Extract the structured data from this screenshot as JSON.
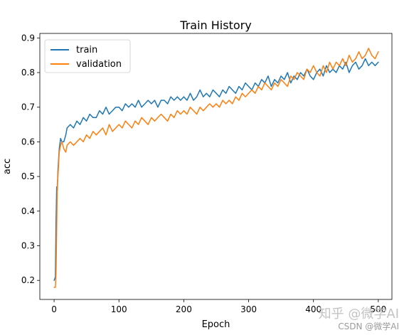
{
  "chart_data": {
    "type": "line",
    "title": "Train History",
    "xlabel": "Epoch",
    "ylabel": "acc",
    "xlim": [
      -22,
      521
    ],
    "ylim": [
      0.145,
      0.913
    ],
    "xticks": [
      0,
      100,
      200,
      300,
      400,
      500
    ],
    "yticks": [
      0.2,
      0.3,
      0.4,
      0.5,
      0.6,
      0.7,
      0.8,
      0.9
    ],
    "legend_position": "top-left",
    "grid": false,
    "series": [
      {
        "name": "train",
        "color": "#1f77b4",
        "x": [
          0,
          2,
          3,
          4,
          5,
          6,
          8,
          10,
          12,
          15,
          18,
          20,
          25,
          30,
          35,
          40,
          45,
          50,
          55,
          60,
          65,
          70,
          75,
          80,
          85,
          90,
          95,
          100,
          105,
          110,
          115,
          120,
          125,
          130,
          135,
          140,
          145,
          150,
          155,
          160,
          165,
          170,
          175,
          180,
          185,
          190,
          195,
          200,
          205,
          210,
          215,
          220,
          225,
          230,
          235,
          240,
          245,
          250,
          255,
          260,
          265,
          270,
          275,
          280,
          285,
          290,
          295,
          300,
          305,
          310,
          315,
          320,
          325,
          330,
          335,
          340,
          345,
          350,
          355,
          360,
          365,
          370,
          375,
          380,
          385,
          390,
          395,
          400,
          405,
          410,
          415,
          420,
          425,
          430,
          435,
          440,
          445,
          450,
          455,
          460,
          465,
          470,
          475,
          480,
          485,
          490,
          495,
          500
        ],
        "y": [
          0.2,
          0.21,
          0.37,
          0.47,
          0.46,
          0.52,
          0.58,
          0.61,
          0.6,
          0.6,
          0.62,
          0.64,
          0.65,
          0.64,
          0.66,
          0.65,
          0.67,
          0.66,
          0.68,
          0.67,
          0.67,
          0.69,
          0.68,
          0.7,
          0.68,
          0.69,
          0.7,
          0.7,
          0.69,
          0.71,
          0.7,
          0.71,
          0.7,
          0.72,
          0.7,
          0.71,
          0.72,
          0.71,
          0.72,
          0.7,
          0.72,
          0.72,
          0.71,
          0.73,
          0.72,
          0.73,
          0.72,
          0.73,
          0.72,
          0.74,
          0.72,
          0.73,
          0.75,
          0.73,
          0.74,
          0.73,
          0.75,
          0.74,
          0.73,
          0.75,
          0.74,
          0.76,
          0.75,
          0.74,
          0.76,
          0.75,
          0.77,
          0.76,
          0.75,
          0.77,
          0.76,
          0.78,
          0.77,
          0.79,
          0.76,
          0.78,
          0.77,
          0.79,
          0.78,
          0.8,
          0.77,
          0.79,
          0.78,
          0.8,
          0.79,
          0.81,
          0.79,
          0.78,
          0.8,
          0.81,
          0.79,
          0.82,
          0.8,
          0.81,
          0.8,
          0.82,
          0.81,
          0.83,
          0.8,
          0.82,
          0.83,
          0.81,
          0.82,
          0.84,
          0.82,
          0.83,
          0.82,
          0.83
        ]
      },
      {
        "name": "validation",
        "color": "#ff7f0e",
        "x": [
          0,
          2,
          3,
          4,
          5,
          6,
          8,
          10,
          12,
          15,
          18,
          20,
          25,
          30,
          35,
          40,
          45,
          50,
          55,
          60,
          65,
          70,
          75,
          80,
          85,
          90,
          95,
          100,
          105,
          110,
          115,
          120,
          125,
          130,
          135,
          140,
          145,
          150,
          155,
          160,
          165,
          170,
          175,
          180,
          185,
          190,
          195,
          200,
          205,
          210,
          215,
          220,
          225,
          230,
          235,
          240,
          245,
          250,
          255,
          260,
          265,
          270,
          275,
          280,
          285,
          290,
          295,
          300,
          305,
          310,
          315,
          320,
          325,
          330,
          335,
          340,
          345,
          350,
          355,
          360,
          365,
          370,
          375,
          380,
          385,
          390,
          395,
          400,
          405,
          410,
          415,
          420,
          425,
          430,
          435,
          440,
          445,
          450,
          455,
          460,
          465,
          470,
          475,
          480,
          485,
          490,
          495,
          500
        ],
        "y": [
          0.18,
          0.18,
          0.22,
          0.35,
          0.48,
          0.5,
          0.57,
          0.59,
          0.6,
          0.58,
          0.57,
          0.59,
          0.6,
          0.59,
          0.6,
          0.61,
          0.6,
          0.62,
          0.61,
          0.63,
          0.62,
          0.63,
          0.64,
          0.62,
          0.65,
          0.63,
          0.64,
          0.65,
          0.64,
          0.66,
          0.65,
          0.64,
          0.66,
          0.65,
          0.67,
          0.66,
          0.65,
          0.67,
          0.66,
          0.67,
          0.68,
          0.67,
          0.66,
          0.68,
          0.67,
          0.69,
          0.68,
          0.69,
          0.68,
          0.7,
          0.69,
          0.68,
          0.7,
          0.69,
          0.7,
          0.71,
          0.7,
          0.71,
          0.7,
          0.72,
          0.71,
          0.72,
          0.71,
          0.73,
          0.72,
          0.74,
          0.73,
          0.74,
          0.75,
          0.74,
          0.76,
          0.75,
          0.77,
          0.76,
          0.75,
          0.77,
          0.76,
          0.78,
          0.77,
          0.76,
          0.79,
          0.78,
          0.8,
          0.79,
          0.78,
          0.81,
          0.8,
          0.82,
          0.8,
          0.79,
          0.82,
          0.8,
          0.83,
          0.81,
          0.83,
          0.82,
          0.84,
          0.82,
          0.85,
          0.83,
          0.84,
          0.86,
          0.84,
          0.85,
          0.87,
          0.85,
          0.84,
          0.86
        ]
      }
    ]
  },
  "watermark": {
    "zh": "知乎 @微学AI",
    "csdn": "CSDN @微学AI"
  }
}
